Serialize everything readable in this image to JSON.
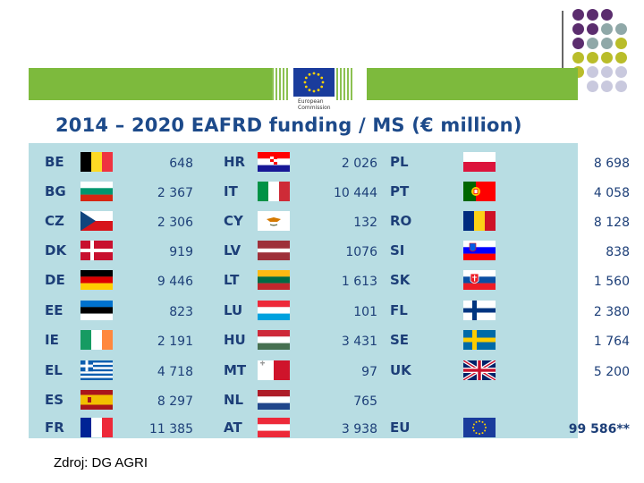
{
  "header": {
    "title": "2014 – 2020 EAFRD funding / MS (€ million)",
    "logo_text": "European Commission"
  },
  "source": "Zdroj: DG AGRI",
  "colors": {
    "band": "#7dba3d",
    "panel": "#b8dde3",
    "title": "#1d4a8a",
    "text": "#1d3f78"
  },
  "columns": [
    [
      {
        "code": "BE",
        "value": "648",
        "flag": "be"
      },
      {
        "code": "BG",
        "value": "2 367",
        "flag": "bg"
      },
      {
        "code": "CZ",
        "value": "2 306",
        "flag": "cz"
      },
      {
        "code": "DK",
        "value": "919",
        "flag": "dk"
      },
      {
        "code": "DE",
        "value": "9 446",
        "flag": "de"
      },
      {
        "code": "EE",
        "value": "823",
        "flag": "ee"
      },
      {
        "code": "IE",
        "value": "2 191",
        "flag": "ie"
      },
      {
        "code": "EL",
        "value": "4 718",
        "flag": "el"
      },
      {
        "code": "ES",
        "value": "8 297",
        "flag": "es"
      },
      {
        "code": "FR",
        "value": "11 385",
        "flag": "fr"
      }
    ],
    [
      {
        "code": "HR",
        "value": "2 026",
        "flag": "hr"
      },
      {
        "code": "IT",
        "value": "10 444",
        "flag": "it"
      },
      {
        "code": "CY",
        "value": "132",
        "flag": "cy"
      },
      {
        "code": "LV",
        "value": "1076",
        "flag": "lv"
      },
      {
        "code": "LT",
        "value": "1 613",
        "flag": "lt"
      },
      {
        "code": "LU",
        "value": "101",
        "flag": "lu"
      },
      {
        "code": "HU",
        "value": "3 431",
        "flag": "hu"
      },
      {
        "code": "MT",
        "value": "97",
        "flag": "mt"
      },
      {
        "code": "NL",
        "value": "765",
        "flag": "nl"
      },
      {
        "code": "AT",
        "value": "3 938",
        "flag": "at"
      }
    ],
    [
      {
        "code": "PL",
        "value": "8 698",
        "flag": "pl"
      },
      {
        "code": "PT",
        "value": "4 058",
        "flag": "pt"
      },
      {
        "code": "RO",
        "value": "8 128",
        "flag": "ro"
      },
      {
        "code": "SI",
        "value": "838",
        "flag": "si"
      },
      {
        "code": "SK",
        "value": "1 560",
        "flag": "sk"
      },
      {
        "code": "FL",
        "value": "2 380",
        "flag": "fi"
      },
      {
        "code": "SE",
        "value": "1 764",
        "flag": "se"
      },
      {
        "code": "UK",
        "value": "5 200",
        "flag": "uk"
      },
      {
        "code": "",
        "value": "",
        "flag": ""
      },
      {
        "code": "EU",
        "value": "99 586**",
        "flag": "eu",
        "bold": true
      }
    ]
  ]
}
